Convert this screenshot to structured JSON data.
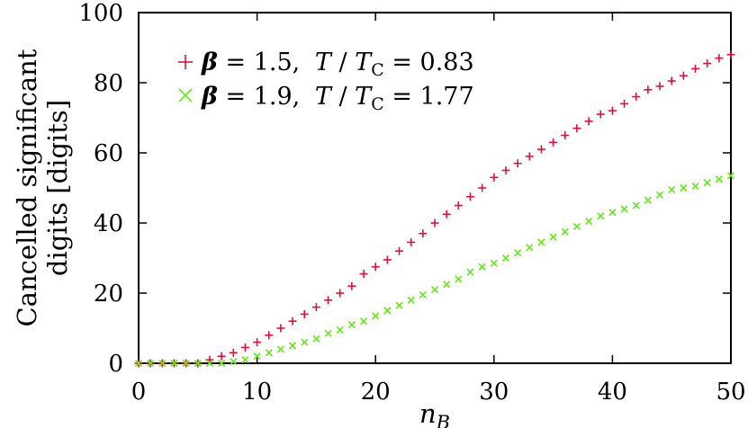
{
  "chart_data": {
    "type": "scatter",
    "title": "",
    "xlabel_main": "n",
    "xlabel_sub": "B",
    "ylabel_line1": "Cancelled significant",
    "ylabel_line2": "digits [digits]",
    "xlim": [
      0,
      50
    ],
    "ylim": [
      0,
      100
    ],
    "xticks": [
      0,
      10,
      20,
      30,
      40,
      50
    ],
    "yticks": [
      0,
      20,
      40,
      60,
      80,
      100
    ],
    "grid": false,
    "legend_position": "top-left",
    "series": [
      {
        "marker": "plus",
        "color": "#e0103a",
        "legend": {
          "beta_symbol": "β",
          "beta_value": "= 1.5,",
          "t_symbol": "T",
          "slash": "/",
          "tc_symbol": "T",
          "tc_sub": "C",
          "t_value": "= 0.83"
        },
        "x": [
          0,
          1,
          2,
          3,
          4,
          5,
          6,
          7,
          8,
          9,
          10,
          11,
          12,
          13,
          14,
          15,
          16,
          17,
          18,
          19,
          20,
          21,
          22,
          23,
          24,
          25,
          26,
          27,
          28,
          29,
          30,
          31,
          32,
          33,
          34,
          35,
          36,
          37,
          38,
          39,
          40,
          41,
          42,
          43,
          44,
          45,
          46,
          47,
          48,
          49,
          50
        ],
        "y": [
          0,
          0,
          0,
          0,
          0,
          0,
          1,
          2,
          3,
          4.5,
          6,
          8,
          10,
          12,
          14,
          16,
          18,
          20,
          22,
          25.5,
          27.5,
          29.5,
          32,
          34.5,
          37,
          40,
          42.5,
          45,
          47.5,
          50,
          53,
          55,
          57,
          59,
          61,
          63,
          65,
          67,
          69,
          71,
          72,
          74,
          76,
          78,
          79,
          80.5,
          82,
          84,
          85.5,
          87,
          88
        ]
      },
      {
        "marker": "cross",
        "color": "#66e61a",
        "legend": {
          "beta_symbol": "β",
          "beta_value": "= 1.9,",
          "t_symbol": "T",
          "slash": "/",
          "tc_symbol": "T",
          "tc_sub": "C",
          "t_value": "= 1.77"
        },
        "x": [
          0,
          1,
          2,
          3,
          4,
          5,
          6,
          7,
          8,
          9,
          10,
          11,
          12,
          13,
          14,
          15,
          16,
          17,
          18,
          19,
          20,
          21,
          22,
          23,
          24,
          25,
          26,
          27,
          28,
          29,
          30,
          31,
          32,
          33,
          34,
          35,
          36,
          37,
          38,
          39,
          40,
          41,
          42,
          43,
          44,
          45,
          46,
          47,
          48,
          49,
          50
        ],
        "y": [
          0,
          0,
          0,
          0,
          0,
          0,
          0,
          0,
          0.5,
          1,
          2,
          3,
          4,
          5,
          6,
          7,
          8.5,
          9.5,
          11,
          12,
          13.5,
          15,
          16.5,
          18,
          19.5,
          21,
          22.5,
          24,
          26,
          27.5,
          28.5,
          30,
          31.5,
          33,
          34.5,
          36,
          37.5,
          39,
          40.5,
          42,
          43,
          44,
          45,
          46.5,
          48,
          49.5,
          50,
          50.5,
          51.5,
          52.5,
          53.5
        ]
      }
    ]
  }
}
